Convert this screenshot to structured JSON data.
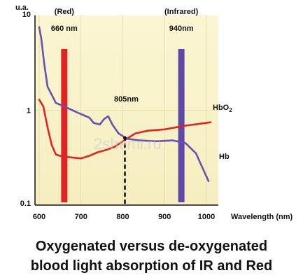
{
  "chart_data": {
    "type": "line",
    "x_axis": {
      "label": "Wavelength (nm)",
      "min": 600,
      "max": 1000,
      "ticks": [
        600,
        700,
        800,
        900,
        1000
      ]
    },
    "y_axis": {
      "label": "u.a.",
      "scale": "log",
      "min": 0.1,
      "max": 10,
      "ticks": [
        "10",
        "1",
        "0.1"
      ]
    },
    "series": [
      {
        "name": "HbO2",
        "label_main": "HbO",
        "label_sub": "2",
        "color": "#e02424",
        "points": [
          [
            600,
            1.3
          ],
          [
            610,
            1.1
          ],
          [
            620,
            0.65
          ],
          [
            630,
            0.42
          ],
          [
            640,
            0.33
          ],
          [
            650,
            0.32
          ],
          [
            670,
            0.31
          ],
          [
            700,
            0.3
          ],
          [
            720,
            0.32
          ],
          [
            740,
            0.35
          ],
          [
            760,
            0.37
          ],
          [
            780,
            0.4
          ],
          [
            800,
            0.46
          ],
          [
            830,
            0.56
          ],
          [
            860,
            0.6
          ],
          [
            900,
            0.62
          ],
          [
            950,
            0.68
          ],
          [
            990,
            0.72
          ],
          [
            1010,
            0.74
          ]
        ]
      },
      {
        "name": "Hb",
        "label_main": "Hb",
        "color": "#6a51b0",
        "points": [
          [
            600,
            8.0
          ],
          [
            605,
            6.0
          ],
          [
            612,
            3.2
          ],
          [
            620,
            1.8
          ],
          [
            640,
            1.2
          ],
          [
            660,
            1.1
          ],
          [
            690,
            0.95
          ],
          [
            710,
            0.87
          ],
          [
            720,
            0.83
          ],
          [
            730,
            0.73
          ],
          [
            745,
            0.7
          ],
          [
            755,
            0.8
          ],
          [
            765,
            0.86
          ],
          [
            775,
            0.7
          ],
          [
            790,
            0.56
          ],
          [
            810,
            0.49
          ],
          [
            840,
            0.47
          ],
          [
            880,
            0.46
          ],
          [
            920,
            0.47
          ],
          [
            950,
            0.44
          ],
          [
            975,
            0.34
          ],
          [
            990,
            0.24
          ],
          [
            1005,
            0.17
          ]
        ]
      }
    ],
    "markers": [
      {
        "label_top": "(Red)",
        "label_bottom": "660 nm",
        "x": 660,
        "color": "#e02424"
      },
      {
        "label_top": "(Infrared)",
        "label_bottom": "940nm",
        "x": 940,
        "color": "#5e4aa6"
      }
    ],
    "isosbestic": {
      "label": "805nm",
      "x": 805,
      "y": 0.5
    }
  },
  "watermark": "2shemi.ru",
  "caption": {
    "line1": "Oxygenated versus de-oxygenated",
    "line2": "blood light absorption of IR and Red"
  }
}
